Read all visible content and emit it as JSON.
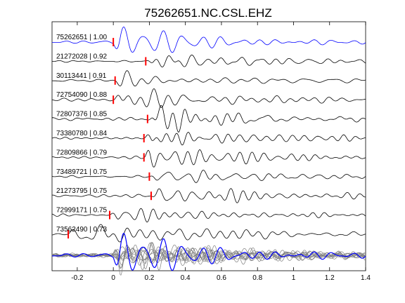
{
  "title": "75262651.NC.CSL.EHZ",
  "chart_data": {
    "type": "line",
    "title": "75262651.NC.CSL.EHZ",
    "xlabel": "",
    "ylabel": "",
    "xlim": [
      -0.34,
      1.4
    ],
    "x_ticks": [
      "-0.2",
      "0",
      "0.2",
      "0.4",
      "0.6",
      "0.8",
      "1",
      "1.2",
      "1.4"
    ],
    "x_tick_values": [
      -0.2,
      0,
      0.2,
      0.4,
      0.6,
      0.8,
      1.0,
      1.2,
      1.4
    ],
    "grid": false,
    "legend": "none",
    "colors": {
      "master_trace": "#0000ff",
      "trace": "#000000",
      "pick": "#ff0000",
      "stack_trace": "#808080"
    },
    "traces": [
      {
        "label": "75262651 | 1.00",
        "pick_time": 0.0,
        "color": "#0000ff"
      },
      {
        "label": "21272028 | 0.92",
        "pick_time": 0.18,
        "color": "#000000"
      },
      {
        "label": "30113441 | 0.91",
        "pick_time": 0.01,
        "color": "#000000"
      },
      {
        "label": "72754090 | 0.88",
        "pick_time": 0.0,
        "color": "#000000"
      },
      {
        "label": "72807376 | 0.85",
        "pick_time": 0.19,
        "color": "#000000"
      },
      {
        "label": "73380780 | 0.84",
        "pick_time": 0.17,
        "color": "#000000"
      },
      {
        "label": "72809866 | 0.79",
        "pick_time": 0.17,
        "color": "#000000"
      },
      {
        "label": "73489721 | 0.75",
        "pick_time": 0.2,
        "color": "#000000"
      },
      {
        "label": "21273795 | 0.75",
        "pick_time": 0.21,
        "color": "#000000"
      },
      {
        "label": "72999171 | 0.75",
        "pick_time": -0.02,
        "color": "#000000"
      },
      {
        "label": "73562490 | 0.73",
        "pick_time": -0.25,
        "color": "#000000"
      }
    ],
    "stack": {
      "count": 11,
      "color": "#808080",
      "overlay_color": "#0000ff"
    }
  }
}
